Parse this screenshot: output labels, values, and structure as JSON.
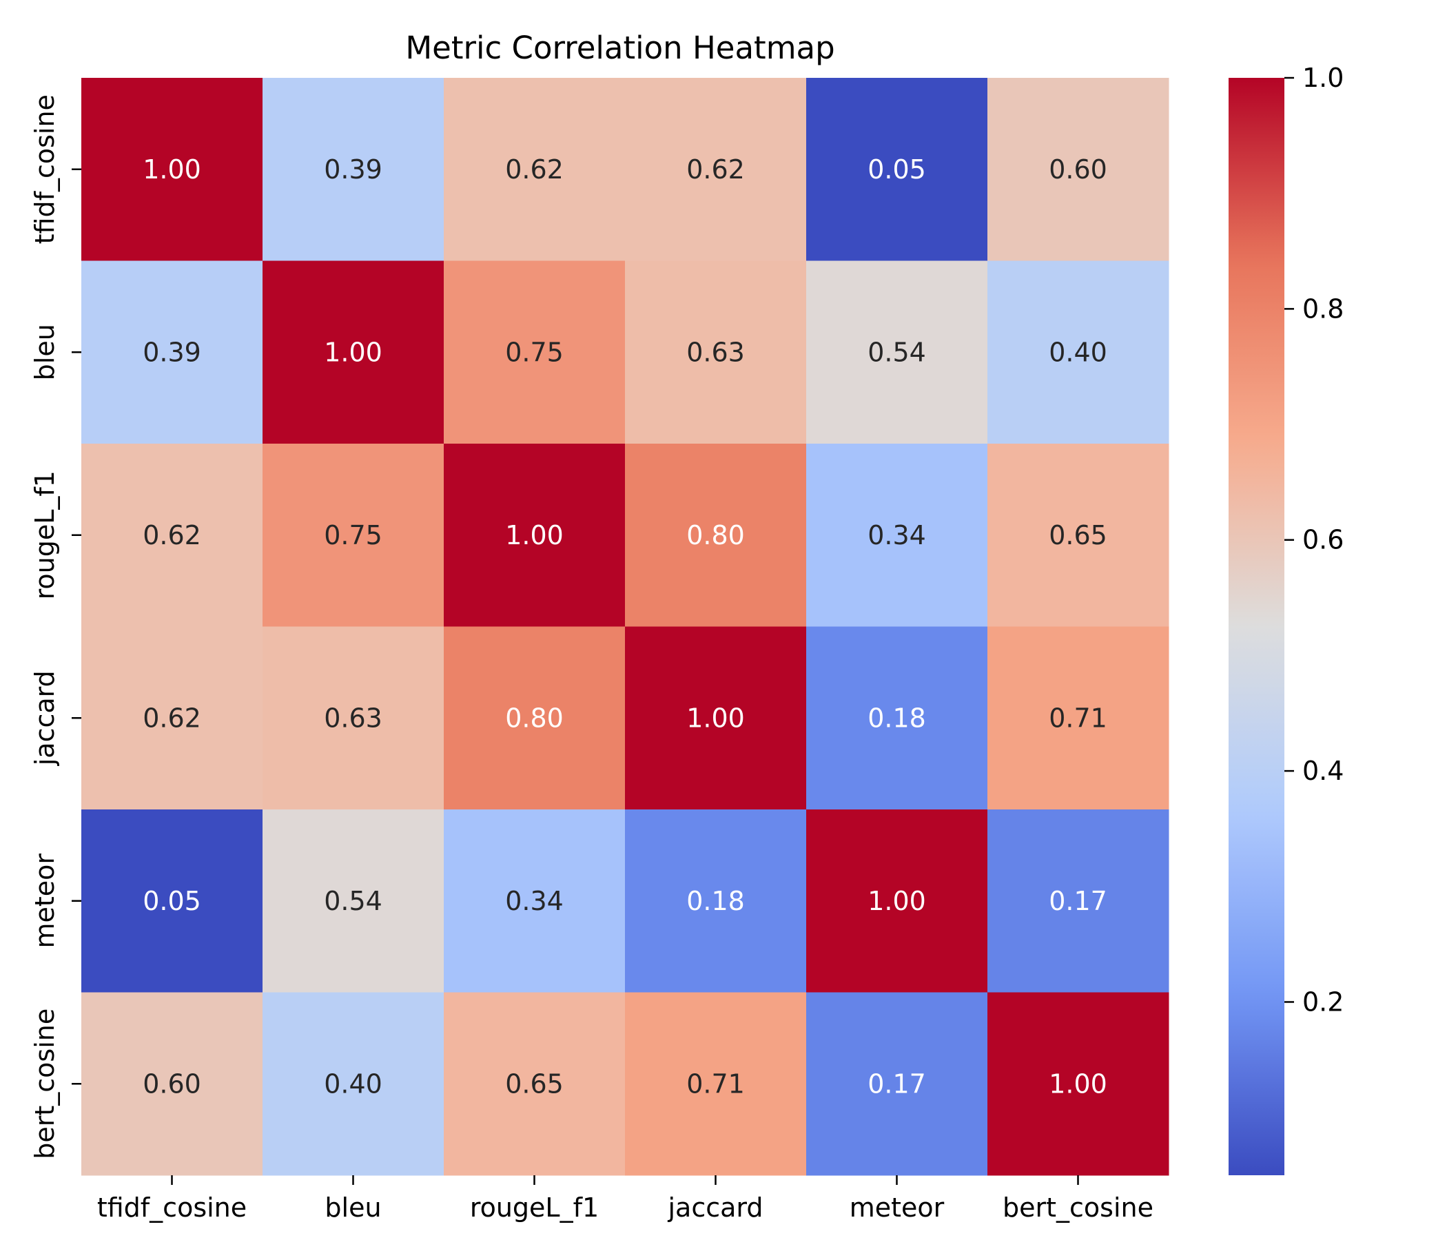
{
  "chart_data": {
    "type": "heatmap",
    "title": "Metric Correlation Heatmap",
    "xlabel": "",
    "ylabel": "",
    "x_categories": [
      "tfidf_cosine",
      "bleu",
      "rougeL_f1",
      "jaccard",
      "meteor",
      "bert_cosine"
    ],
    "y_categories": [
      "tfidf_cosine",
      "bleu",
      "rougeL_f1",
      "jaccard",
      "meteor",
      "bert_cosine"
    ],
    "values": [
      [
        1.0,
        0.39,
        0.62,
        0.62,
        0.05,
        0.6
      ],
      [
        0.39,
        1.0,
        0.75,
        0.63,
        0.54,
        0.4
      ],
      [
        0.62,
        0.75,
        1.0,
        0.8,
        0.34,
        0.65
      ],
      [
        0.62,
        0.63,
        0.8,
        1.0,
        0.18,
        0.71
      ],
      [
        0.05,
        0.54,
        0.34,
        0.18,
        1.0,
        0.17
      ],
      [
        0.6,
        0.4,
        0.65,
        0.71,
        0.17,
        1.0
      ]
    ],
    "annotation_format": "0.00",
    "colormap": "coolwarm",
    "colormap_stops": [
      "#3b4cc0",
      "#7396f5",
      "#b0cbfc",
      "#dddddd",
      "#f7ac8e",
      "#e7745b",
      "#b40426"
    ],
    "colorbar": {
      "range": [
        0.05,
        1.0
      ],
      "ticks": [
        0.2,
        0.4,
        0.6,
        0.8,
        1.0
      ],
      "tick_labels": [
        "0.2",
        "0.4",
        "0.6",
        "0.8",
        "1.0"
      ],
      "placement": "right"
    },
    "annotation_colors": {
      "dark_text": "#262626",
      "light_text": "#ffffff"
    }
  }
}
